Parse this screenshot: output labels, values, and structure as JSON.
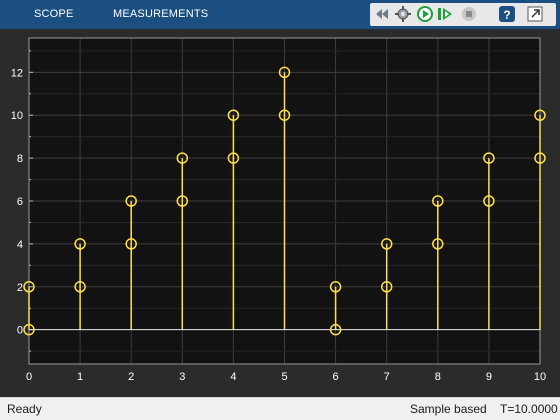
{
  "header": {
    "tabs": [
      {
        "label": "SCOPE"
      },
      {
        "label": "MEASUREMENTS"
      }
    ],
    "toolbar": [
      {
        "icon": "back-forward-icon"
      },
      {
        "icon": "settings-icon"
      },
      {
        "icon": "run-icon",
        "color": "#1e9e3a"
      },
      {
        "icon": "step-forward-icon",
        "color": "#1e9e3a"
      },
      {
        "icon": "stop-icon"
      },
      {
        "icon": "help-icon"
      },
      {
        "icon": "undock-icon"
      }
    ]
  },
  "chart_data": {
    "type": "stem",
    "x": [
      0,
      1,
      2,
      3,
      4,
      5,
      6,
      7,
      8,
      9,
      10
    ],
    "series": [
      {
        "values": [
          0,
          2,
          4,
          6,
          8,
          10,
          0,
          2,
          4,
          6,
          8
        ]
      },
      {
        "values": [
          2,
          4,
          6,
          8,
          10,
          12,
          2,
          4,
          6,
          8,
          10
        ]
      }
    ],
    "x_ticks": [
      "0",
      "1",
      "2",
      "3",
      "4",
      "5",
      "6",
      "7",
      "8",
      "9",
      "10"
    ],
    "y_ticks": [
      "0",
      "2",
      "4",
      "6",
      "8",
      "10",
      "12"
    ],
    "xlim": [
      0,
      10
    ],
    "ylim": [
      -1.6,
      13.6
    ],
    "grid": true,
    "colors": {
      "stem": "#ffe04a",
      "background": "#121212",
      "grid": "#3e3e3e",
      "axis_text": "#ffffff"
    }
  },
  "status": {
    "state": "Ready",
    "mode": "Sample based",
    "time": "T=10.0000"
  }
}
